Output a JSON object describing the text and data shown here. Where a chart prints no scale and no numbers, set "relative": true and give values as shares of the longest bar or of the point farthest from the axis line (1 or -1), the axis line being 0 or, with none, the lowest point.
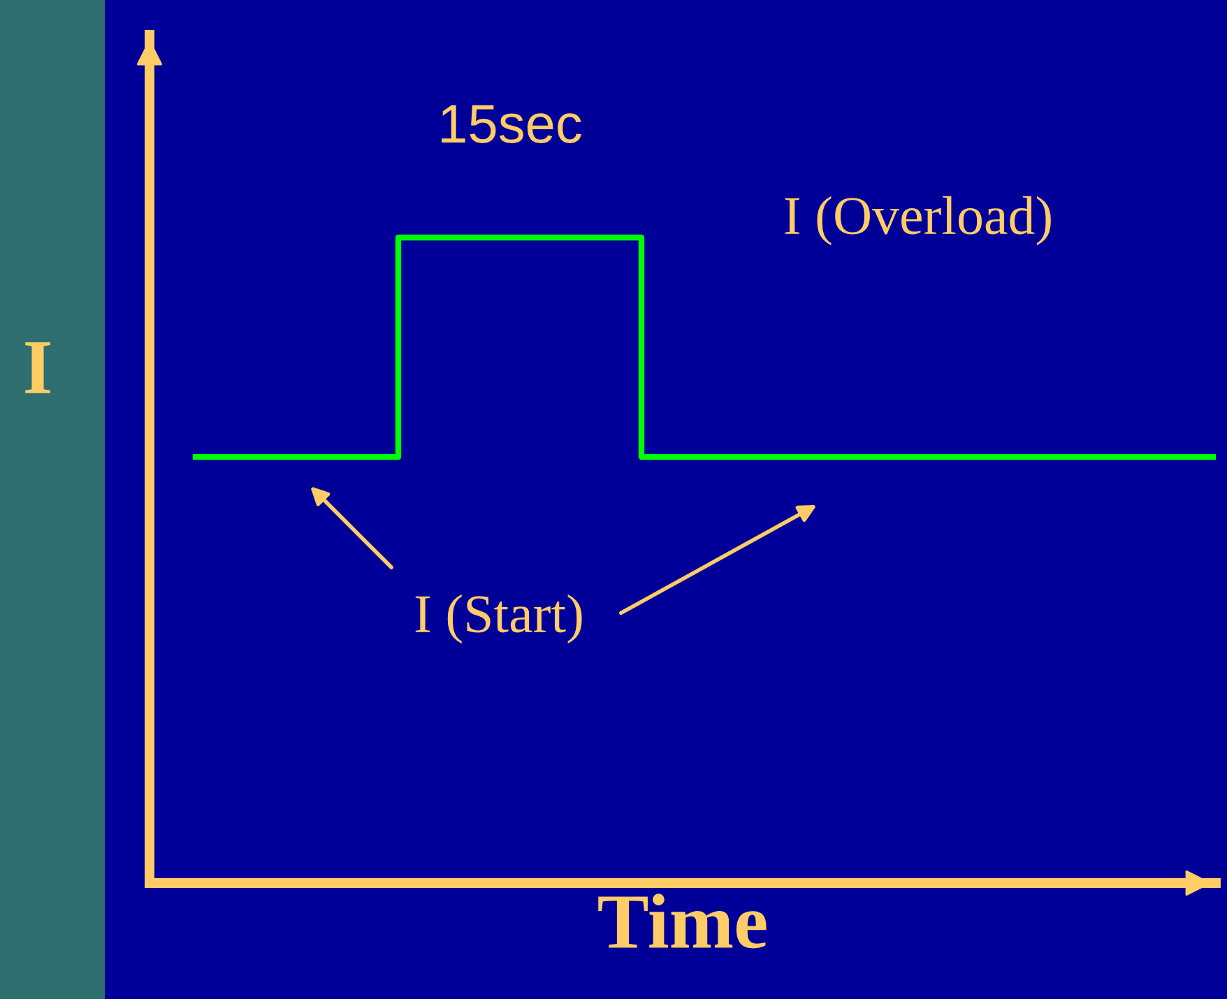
{
  "chart_data": {
    "type": "step",
    "relative": true,
    "xlabel": "Time",
    "ylabel": "I",
    "categories": [
      null,
      null,
      null,
      null,
      null,
      null,
      null,
      null,
      null,
      null,
      null,
      null,
      null,
      null,
      null,
      null,
      null,
      null,
      null,
      null,
      null,
      null,
      null,
      null,
      null,
      null
    ],
    "series": [
      {
        "color": "#00ff00",
        "values": [
          0.66,
          0.66,
          0.66,
          0.66,
          0.66,
          1,
          1,
          1,
          1,
          1,
          1,
          0.66,
          0.66,
          0.66,
          0.66,
          0.66,
          0.66,
          0.66,
          0.66,
          0.66,
          0.66,
          0.66,
          0.66,
          0.66,
          0.66,
          0.66
        ]
      }
    ],
    "annotations": [
      "15sec",
      "I (Overload)",
      "I (Start)"
    ],
    "grid": false,
    "legend": false,
    "marker": "none",
    "line_style": "solid"
  }
}
